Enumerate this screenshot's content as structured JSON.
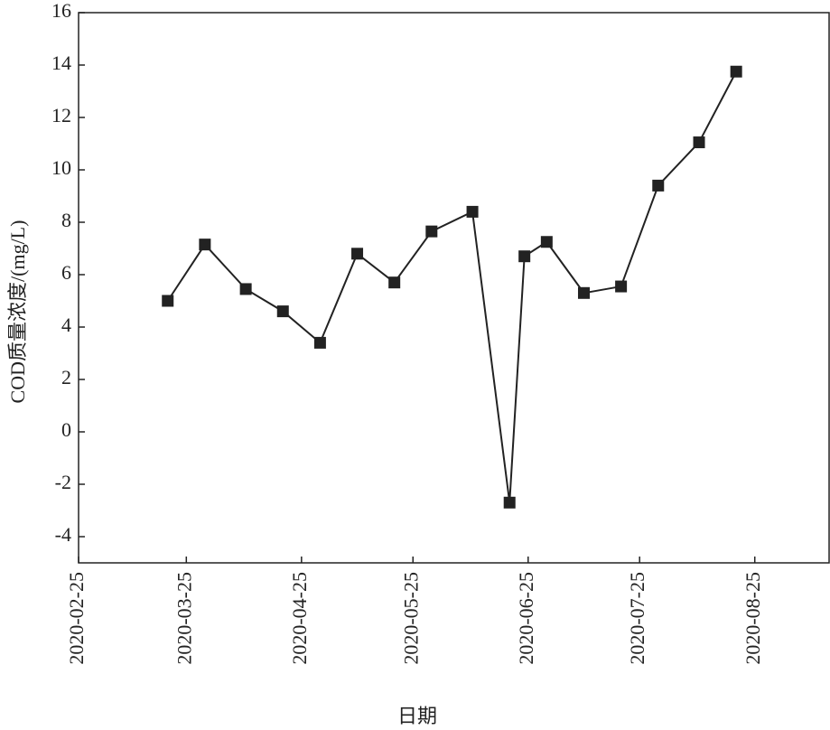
{
  "chart_data": {
    "type": "line",
    "y_label": "COD质量浓度/(mg/L)",
    "x_label": "日期",
    "x": [
      "2020-03-20",
      "2020-03-30",
      "2020-04-10",
      "2020-04-20",
      "2020-04-30",
      "2020-05-10",
      "2020-05-20",
      "2020-05-30",
      "2020-06-10",
      "2020-06-20",
      "2020-06-24",
      "2020-06-30",
      "2020-07-10",
      "2020-07-20",
      "2020-07-30",
      "2020-08-10",
      "2020-08-20"
    ],
    "series": [
      {
        "color": "#222222",
        "values": [
          5.0,
          7.15,
          5.45,
          4.6,
          3.4,
          6.8,
          5.7,
          7.65,
          8.4,
          -2.7,
          6.7,
          7.25,
          5.3,
          5.55,
          9.4,
          11.05,
          13.75
        ]
      }
    ],
    "xlim": [
      "2020-02-25",
      "2020-09-14"
    ],
    "xticks": [
      "2020-02-25",
      "2020-03-25",
      "2020-04-25",
      "2020-05-25",
      "2020-06-25",
      "2020-07-25",
      "2020-08-25"
    ],
    "ylim": [
      -5,
      16
    ],
    "yticks": [
      -4,
      -2,
      0,
      2,
      4,
      6,
      8,
      10,
      12,
      14,
      16
    ],
    "marker": "square"
  }
}
